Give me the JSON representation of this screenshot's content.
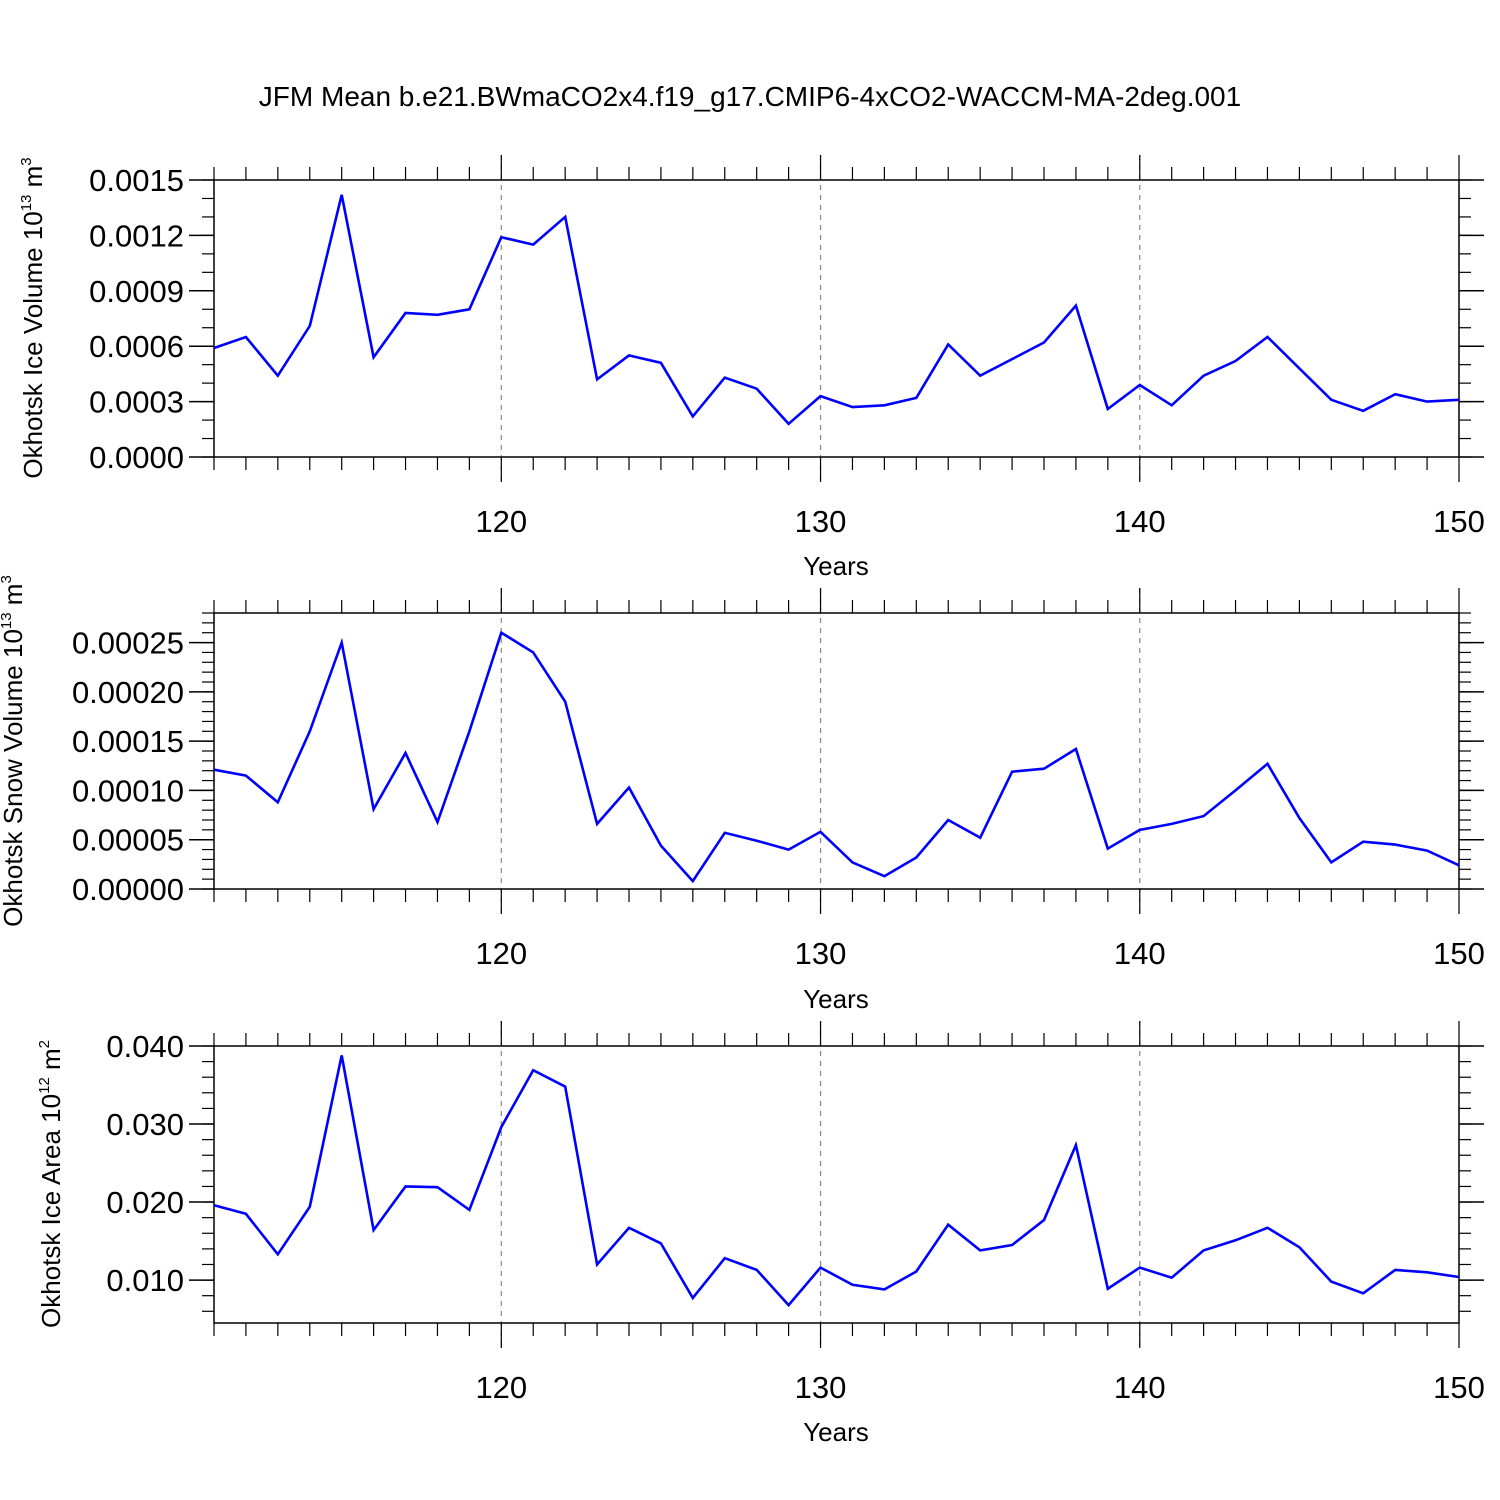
{
  "title": "JFM Mean b.e21.BWmaCO2x4.f19_g17.CMIP6-4xCO2-WACCM-MA-2deg.001",
  "line_color": "#0000ff",
  "chart_data": [
    {
      "type": "line",
      "ylabel": "Okhotsk Ice Volume 10",
      "ylabel_exp": "13",
      "ylabel_unit": " m",
      "ylabel_unit_exp": "3",
      "xlabel": "Years",
      "xlim": [
        111,
        150
      ],
      "ylim": [
        0,
        0.0015
      ],
      "x_ticks": [
        "120",
        "130",
        "140",
        "150"
      ],
      "y_ticks": [
        "0.0000",
        "0.0003",
        "0.0006",
        "0.0009",
        "0.0012",
        "0.0015"
      ],
      "x": [
        111,
        112,
        113,
        114,
        115,
        116,
        117,
        118,
        119,
        120,
        121,
        122,
        123,
        124,
        125,
        126,
        127,
        128,
        129,
        130,
        131,
        132,
        133,
        134,
        135,
        136,
        137,
        138,
        139,
        140,
        141,
        142,
        143,
        144,
        145,
        146,
        147,
        148,
        149,
        150
      ],
      "series": [
        {
          "values": [
            0.00059,
            0.00065,
            0.00044,
            0.00071,
            0.00142,
            0.00054,
            0.00078,
            0.00077,
            0.0008,
            0.00119,
            0.00115,
            0.0013,
            0.00042,
            0.00055,
            0.00051,
            0.00022,
            0.00043,
            0.00037,
            0.00018,
            0.00033,
            0.00027,
            0.00028,
            0.00032,
            0.00061,
            0.00044,
            0.00053,
            0.00062,
            0.00082,
            0.00026,
            0.00039,
            0.00028,
            0.00044,
            0.00052,
            0.00065,
            0.00048,
            0.00031,
            0.00025,
            0.00034,
            0.0003,
            0.00031
          ]
        }
      ]
    },
    {
      "type": "line",
      "ylabel": "Okhotsk Snow Volume 10",
      "ylabel_exp": "13",
      "ylabel_unit": " m",
      "ylabel_unit_exp": "3",
      "xlabel": "Years",
      "xlim": [
        111,
        150
      ],
      "ylim": [
        0,
        0.00028
      ],
      "x_ticks": [
        "120",
        "130",
        "140",
        "150"
      ],
      "y_ticks": [
        "0.00000",
        "0.00005",
        "0.00010",
        "0.00015",
        "0.00020",
        "0.00025"
      ],
      "x": [
        111,
        112,
        113,
        114,
        115,
        116,
        117,
        118,
        119,
        120,
        121,
        122,
        123,
        124,
        125,
        126,
        127,
        128,
        129,
        130,
        131,
        132,
        133,
        134,
        135,
        136,
        137,
        138,
        139,
        140,
        141,
        142,
        143,
        144,
        145,
        146,
        147,
        148,
        149,
        150
      ],
      "series": [
        {
          "values": [
            0.000121,
            0.000115,
            8.8e-05,
            0.00016,
            0.00025,
            8.1e-05,
            0.000138,
            6.8e-05,
            0.00016,
            0.00026,
            0.00024,
            0.00019,
            6.6e-05,
            0.000103,
            4.4e-05,
            8e-06,
            5.7e-05,
            4.9e-05,
            4e-05,
            5.8e-05,
            2.7e-05,
            1.3e-05,
            3.2e-05,
            7e-05,
            5.2e-05,
            0.000119,
            0.000122,
            0.000142,
            4.1e-05,
            6e-05,
            6.6e-05,
            7.4e-05,
            0.0001,
            0.000127,
            7.2e-05,
            2.7e-05,
            4.8e-05,
            4.5e-05,
            3.9e-05,
            2.4e-05
          ]
        }
      ]
    },
    {
      "type": "line",
      "ylabel": "Okhotsk Ice Area 10",
      "ylabel_exp": "12",
      "ylabel_unit": " m",
      "ylabel_unit_exp": "2",
      "xlabel": "Years",
      "xlim": [
        111,
        150
      ],
      "ylim": [
        0.0045,
        0.04
      ],
      "x_ticks": [
        "120",
        "130",
        "140",
        "150"
      ],
      "y_ticks": [
        "0.010",
        "0.020",
        "0.030",
        "0.040"
      ],
      "x": [
        111,
        112,
        113,
        114,
        115,
        116,
        117,
        118,
        119,
        120,
        121,
        122,
        123,
        124,
        125,
        126,
        127,
        128,
        129,
        130,
        131,
        132,
        133,
        134,
        135,
        136,
        137,
        138,
        139,
        140,
        141,
        142,
        143,
        144,
        145,
        146,
        147,
        148,
        149,
        150
      ],
      "series": [
        {
          "values": [
            0.0196,
            0.0185,
            0.0133,
            0.0194,
            0.0388,
            0.0164,
            0.022,
            0.0219,
            0.019,
            0.0296,
            0.0369,
            0.0348,
            0.012,
            0.0167,
            0.0147,
            0.0077,
            0.0128,
            0.0113,
            0.0068,
            0.0116,
            0.0094,
            0.0088,
            0.0111,
            0.0171,
            0.0138,
            0.0145,
            0.0177,
            0.0273,
            0.0089,
            0.0116,
            0.0103,
            0.0138,
            0.0151,
            0.0167,
            0.0142,
            0.0098,
            0.0083,
            0.0113,
            0.011,
            0.0104
          ]
        }
      ]
    }
  ]
}
